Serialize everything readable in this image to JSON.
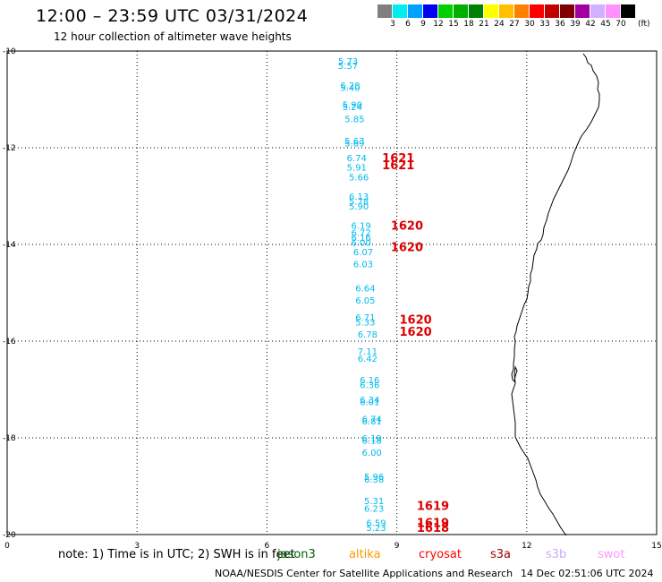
{
  "header": {
    "title": "12:00 – 23:59 UTC 03/31/2024",
    "subtitle": "12 hour collection of altimeter wave heights"
  },
  "colorbar": {
    "colors": [
      "#808080",
      "#00eeee",
      "#00a0ff",
      "#0000f0",
      "#00d000",
      "#00b000",
      "#008000",
      "#ffff00",
      "#ffc000",
      "#ff8000",
      "#ff0000",
      "#c00000",
      "#800000",
      "#a000a0",
      "#d0b0ff",
      "#ff90ff",
      "#000000"
    ],
    "ticks": [
      "3",
      "6",
      "9",
      "12",
      "15",
      "18",
      "21",
      "24",
      "27",
      "30",
      "33",
      "36",
      "39",
      "42",
      "45",
      "70"
    ],
    "unit": "(ft)"
  },
  "axes": {
    "x_ticks": [
      "0",
      "3",
      "6",
      "9",
      "12",
      "15"
    ],
    "y_ticks": [
      "-10",
      "-12",
      "-14",
      "-16",
      "-18",
      "-20"
    ]
  },
  "wave_heights": [
    {
      "t": 8.8,
      "lat": -10.2,
      "v": "5.73"
    },
    {
      "t": 8.8,
      "lat": -10.3,
      "v": "5.57"
    },
    {
      "t": 8.85,
      "lat": -10.7,
      "v": "6.28"
    },
    {
      "t": 8.85,
      "lat": -10.75,
      "v": "5.40"
    },
    {
      "t": 8.9,
      "lat": -11.1,
      "v": "5.90"
    },
    {
      "t": 8.9,
      "lat": -11.15,
      "v": "5.24"
    },
    {
      "t": 8.95,
      "lat": -11.4,
      "v": "5.85"
    },
    {
      "t": 8.95,
      "lat": -11.85,
      "v": "5.63"
    },
    {
      "t": 8.95,
      "lat": -11.9,
      "v": "5.69"
    },
    {
      "t": 9.0,
      "lat": -12.2,
      "v": "6.74"
    },
    {
      "t": 9.0,
      "lat": -12.4,
      "v": "5.91"
    },
    {
      "t": 9.05,
      "lat": -12.6,
      "v": "5.66"
    },
    {
      "t": 9.05,
      "lat": -13.0,
      "v": "6.13"
    },
    {
      "t": 9.05,
      "lat": -13.1,
      "v": "5.78"
    },
    {
      "t": 9.05,
      "lat": -13.2,
      "v": "5.90"
    },
    {
      "t": 9.1,
      "lat": -13.6,
      "v": "6.19"
    },
    {
      "t": 9.1,
      "lat": -13.75,
      "v": "6.72"
    },
    {
      "t": 9.1,
      "lat": -13.85,
      "v": "6.16"
    },
    {
      "t": 9.1,
      "lat": -13.95,
      "v": "6.00"
    },
    {
      "t": 9.15,
      "lat": -14.15,
      "v": "6.07"
    },
    {
      "t": 9.15,
      "lat": -14.4,
      "v": "6.03"
    },
    {
      "t": 9.2,
      "lat": -14.9,
      "v": "6.64"
    },
    {
      "t": 9.2,
      "lat": -15.15,
      "v": "6.05"
    },
    {
      "t": 9.2,
      "lat": -15.5,
      "v": "6.71"
    },
    {
      "t": 9.2,
      "lat": -15.6,
      "v": "5.33"
    },
    {
      "t": 9.25,
      "lat": -15.85,
      "v": "6.78"
    },
    {
      "t": 9.25,
      "lat": -16.2,
      "v": "7.11"
    },
    {
      "t": 9.25,
      "lat": -16.35,
      "v": "6.42"
    },
    {
      "t": 9.3,
      "lat": -16.8,
      "v": "6.16"
    },
    {
      "t": 9.3,
      "lat": -16.9,
      "v": "6.36"
    },
    {
      "t": 9.3,
      "lat": -17.2,
      "v": "6.34"
    },
    {
      "t": 9.3,
      "lat": -17.25,
      "v": "6.01"
    },
    {
      "t": 9.35,
      "lat": -17.6,
      "v": "6.74"
    },
    {
      "t": 9.35,
      "lat": -17.65,
      "v": "6.81"
    },
    {
      "t": 9.35,
      "lat": -18.0,
      "v": "6.19"
    },
    {
      "t": 9.35,
      "lat": -18.05,
      "v": "6.18"
    },
    {
      "t": 9.35,
      "lat": -18.3,
      "v": "6.00"
    },
    {
      "t": 9.4,
      "lat": -18.8,
      "v": "5.96"
    },
    {
      "t": 9.4,
      "lat": -18.85,
      "v": "6.38"
    },
    {
      "t": 9.4,
      "lat": -19.3,
      "v": "5.31"
    },
    {
      "t": 9.4,
      "lat": -19.45,
      "v": "6.23"
    },
    {
      "t": 9.45,
      "lat": -19.75,
      "v": "6.59"
    },
    {
      "t": 9.45,
      "lat": -19.85,
      "v": "5.23"
    }
  ],
  "pass_times": [
    {
      "t": 9.9,
      "lat": -12.2,
      "label": "1621"
    },
    {
      "t": 9.9,
      "lat": -12.35,
      "label": "1621"
    },
    {
      "t": 10.1,
      "lat": -13.6,
      "label": "1620"
    },
    {
      "t": 10.1,
      "lat": -14.05,
      "label": "1620"
    },
    {
      "t": 10.3,
      "lat": -15.55,
      "label": "1620"
    },
    {
      "t": 10.3,
      "lat": -15.8,
      "label": "1620"
    },
    {
      "t": 10.7,
      "lat": -19.4,
      "label": "1619"
    },
    {
      "t": 10.7,
      "lat": -19.75,
      "label": "1619"
    },
    {
      "t": 10.7,
      "lat": -19.85,
      "label": "1618"
    }
  ],
  "legend": {
    "note": "note: 1) Time is in UTC; 2) SWH is in feet",
    "satellites": [
      {
        "name": "jason3",
        "color": "#006400"
      },
      {
        "name": "altika",
        "color": "#ff9900"
      },
      {
        "name": "cryosat",
        "color": "#ff0000"
      },
      {
        "name": "s3a",
        "color": "#990000"
      },
      {
        "name": "s3b",
        "color": "#c8a8ff"
      },
      {
        "name": "swot",
        "color": "#ff99ff"
      }
    ]
  },
  "footer": {
    "credit": "NOAA/NESDIS Center for Satellite Applications and Research",
    "timestamp": "14 Dec 02:51:06 UTC 2024"
  }
}
